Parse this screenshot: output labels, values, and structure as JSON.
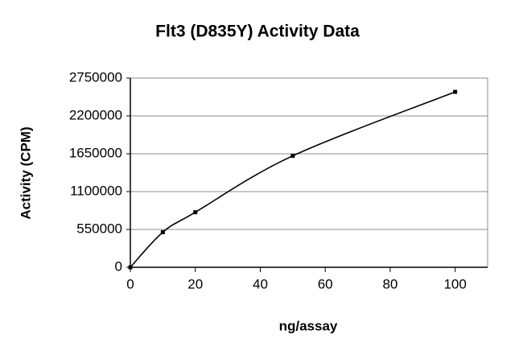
{
  "chart_data": {
    "type": "line",
    "title": "Flt3 (D835Y) Activity Data",
    "x_label": "ng/assay",
    "y_label": "Activity (CPM)",
    "x": [
      0,
      10,
      20,
      50,
      100
    ],
    "series": [
      {
        "name": "Activity",
        "color": "#000000",
        "values": [
          0,
          510000,
          800000,
          1620000,
          2550000
        ]
      }
    ],
    "xlim": [
      0,
      110
    ],
    "xticks": [
      0,
      20,
      40,
      60,
      80,
      100
    ],
    "ylim": [
      0,
      2750000
    ],
    "yticks": [
      0,
      550000,
      1100000,
      1650000,
      2200000,
      2750000
    ],
    "grid": true,
    "smooth": true
  }
}
